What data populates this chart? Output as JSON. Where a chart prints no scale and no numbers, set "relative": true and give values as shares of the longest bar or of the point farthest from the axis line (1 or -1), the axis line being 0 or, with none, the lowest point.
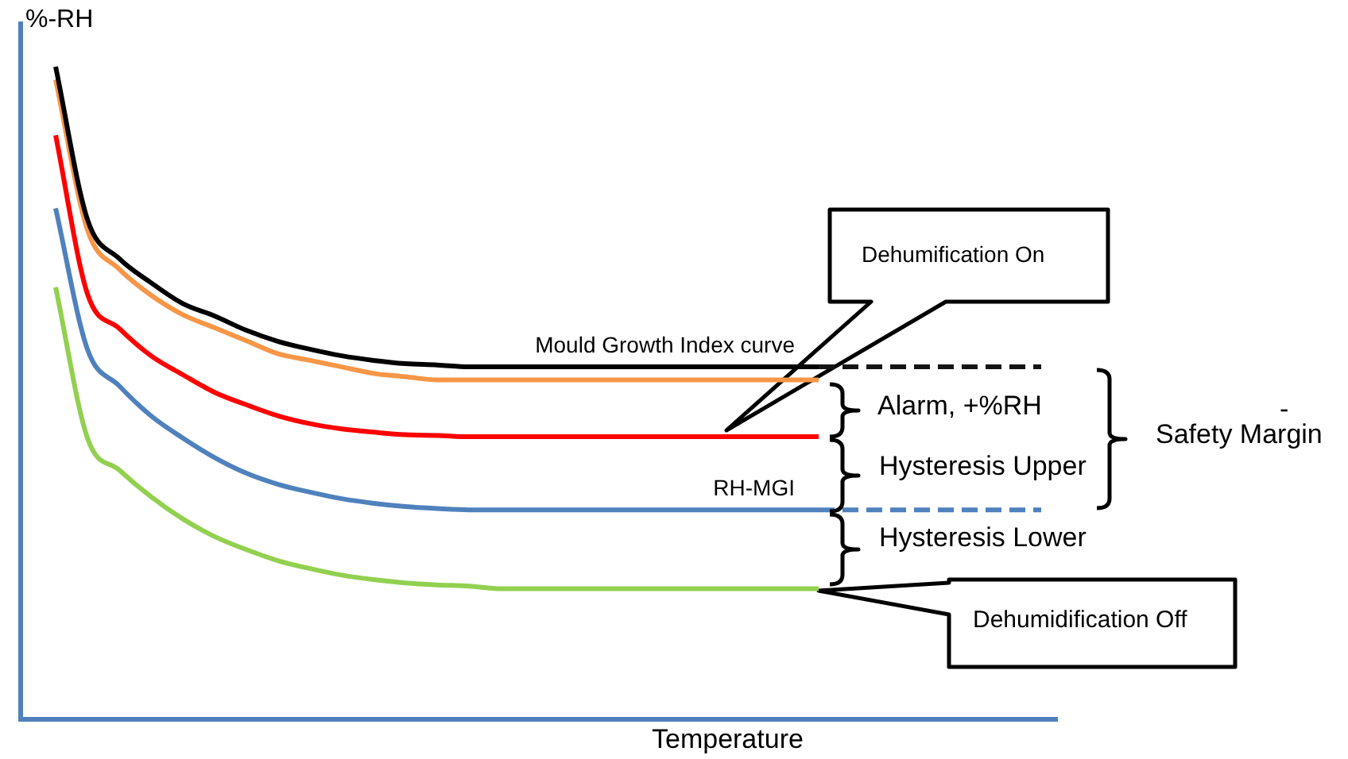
{
  "chart_data": {
    "type": "line",
    "relative": true,
    "marker": "none",
    "xlabel": "Temperature",
    "ylabel": "%-RH",
    "categories": [
      null,
      null,
      null,
      null,
      null,
      null,
      null,
      null,
      null,
      null,
      null,
      null,
      null,
      null,
      null,
      null,
      null,
      null,
      null,
      null,
      null,
      null,
      null,
      null,
      null,
      null,
      null,
      null,
      null,
      null,
      null,
      null
    ],
    "series": [
      {
        "name": "Mould Growth Index curve",
        "color": "#000000",
        "line_style": "solid",
        "values": [
          1.0,
          0.766,
          0.706,
          0.669,
          0.637,
          0.618,
          0.596,
          0.579,
          0.567,
          0.557,
          0.55,
          0.545,
          0.543,
          0.54,
          0.54,
          0.54,
          0.54,
          0.54,
          0.54,
          0.54,
          0.54,
          0.54,
          0.54,
          0.54,
          0.54,
          null,
          null,
          null,
          null,
          null,
          null,
          null
        ]
      },
      {
        "color": "#141414",
        "line_style": "dashed",
        "values": [
          null,
          null,
          null,
          null,
          null,
          null,
          null,
          null,
          null,
          null,
          null,
          null,
          null,
          null,
          null,
          null,
          null,
          null,
          null,
          null,
          null,
          null,
          null,
          null,
          0.54,
          0.54,
          0.54,
          0.54,
          0.54,
          0.54,
          0.54,
          0.54
        ]
      },
      {
        "color": "#f79646",
        "line_style": "solid",
        "values": [
          0.98,
          0.75,
          0.69,
          0.65,
          0.62,
          0.6,
          0.58,
          0.56,
          0.55,
          0.54,
          0.53,
          0.525,
          0.52,
          0.52,
          0.52,
          0.52,
          0.52,
          0.52,
          0.52,
          0.52,
          0.52,
          0.52,
          0.52,
          0.52,
          0.52,
          null,
          null,
          null,
          null,
          null,
          null,
          null
        ]
      },
      {
        "color": "#ff0000",
        "line_style": "solid",
        "values": [
          0.895,
          0.652,
          0.599,
          0.557,
          0.528,
          0.501,
          0.482,
          0.465,
          0.453,
          0.445,
          0.44,
          0.436,
          0.435,
          0.433,
          0.433,
          0.433,
          0.433,
          0.433,
          0.433,
          0.433,
          0.433,
          0.433,
          0.433,
          0.433,
          0.433,
          null,
          null,
          null,
          null,
          null,
          null,
          null
        ]
      },
      {
        "name": "RH-MGI",
        "color": "#4f81bd",
        "line_style": "solid",
        "values": [
          0.783,
          0.567,
          0.511,
          0.465,
          0.431,
          0.401,
          0.377,
          0.36,
          0.348,
          0.338,
          0.331,
          0.326,
          0.323,
          0.321,
          0.321,
          0.321,
          0.321,
          0.321,
          0.321,
          0.321,
          0.321,
          0.321,
          0.321,
          0.321,
          0.321,
          null,
          null,
          null,
          null,
          null,
          null,
          null
        ]
      },
      {
        "color": "#4f81bd",
        "line_style": "dashed",
        "values": [
          null,
          null,
          null,
          null,
          null,
          null,
          null,
          null,
          null,
          null,
          null,
          null,
          null,
          null,
          null,
          null,
          null,
          null,
          null,
          null,
          null,
          null,
          null,
          null,
          0.321,
          0.321,
          0.321,
          0.321,
          0.321,
          0.321,
          0.321,
          0.321
        ]
      },
      {
        "color": "#92d050",
        "line_style": "solid",
        "values": [
          0.662,
          0.431,
          0.382,
          0.341,
          0.307,
          0.28,
          0.26,
          0.243,
          0.231,
          0.221,
          0.214,
          0.209,
          0.206,
          0.204,
          0.2,
          0.2,
          0.2,
          0.2,
          0.2,
          0.2,
          0.2,
          0.2,
          0.2,
          0.2,
          0.2,
          null,
          null,
          null,
          null,
          null,
          null,
          null
        ]
      }
    ],
    "annotations": [
      "Dehumification On",
      "Alarm, +%RH",
      "Hysteresis Upper",
      "Hysteresis Lower",
      "-",
      "Safety Margin",
      "Dehumidification Off"
    ]
  }
}
